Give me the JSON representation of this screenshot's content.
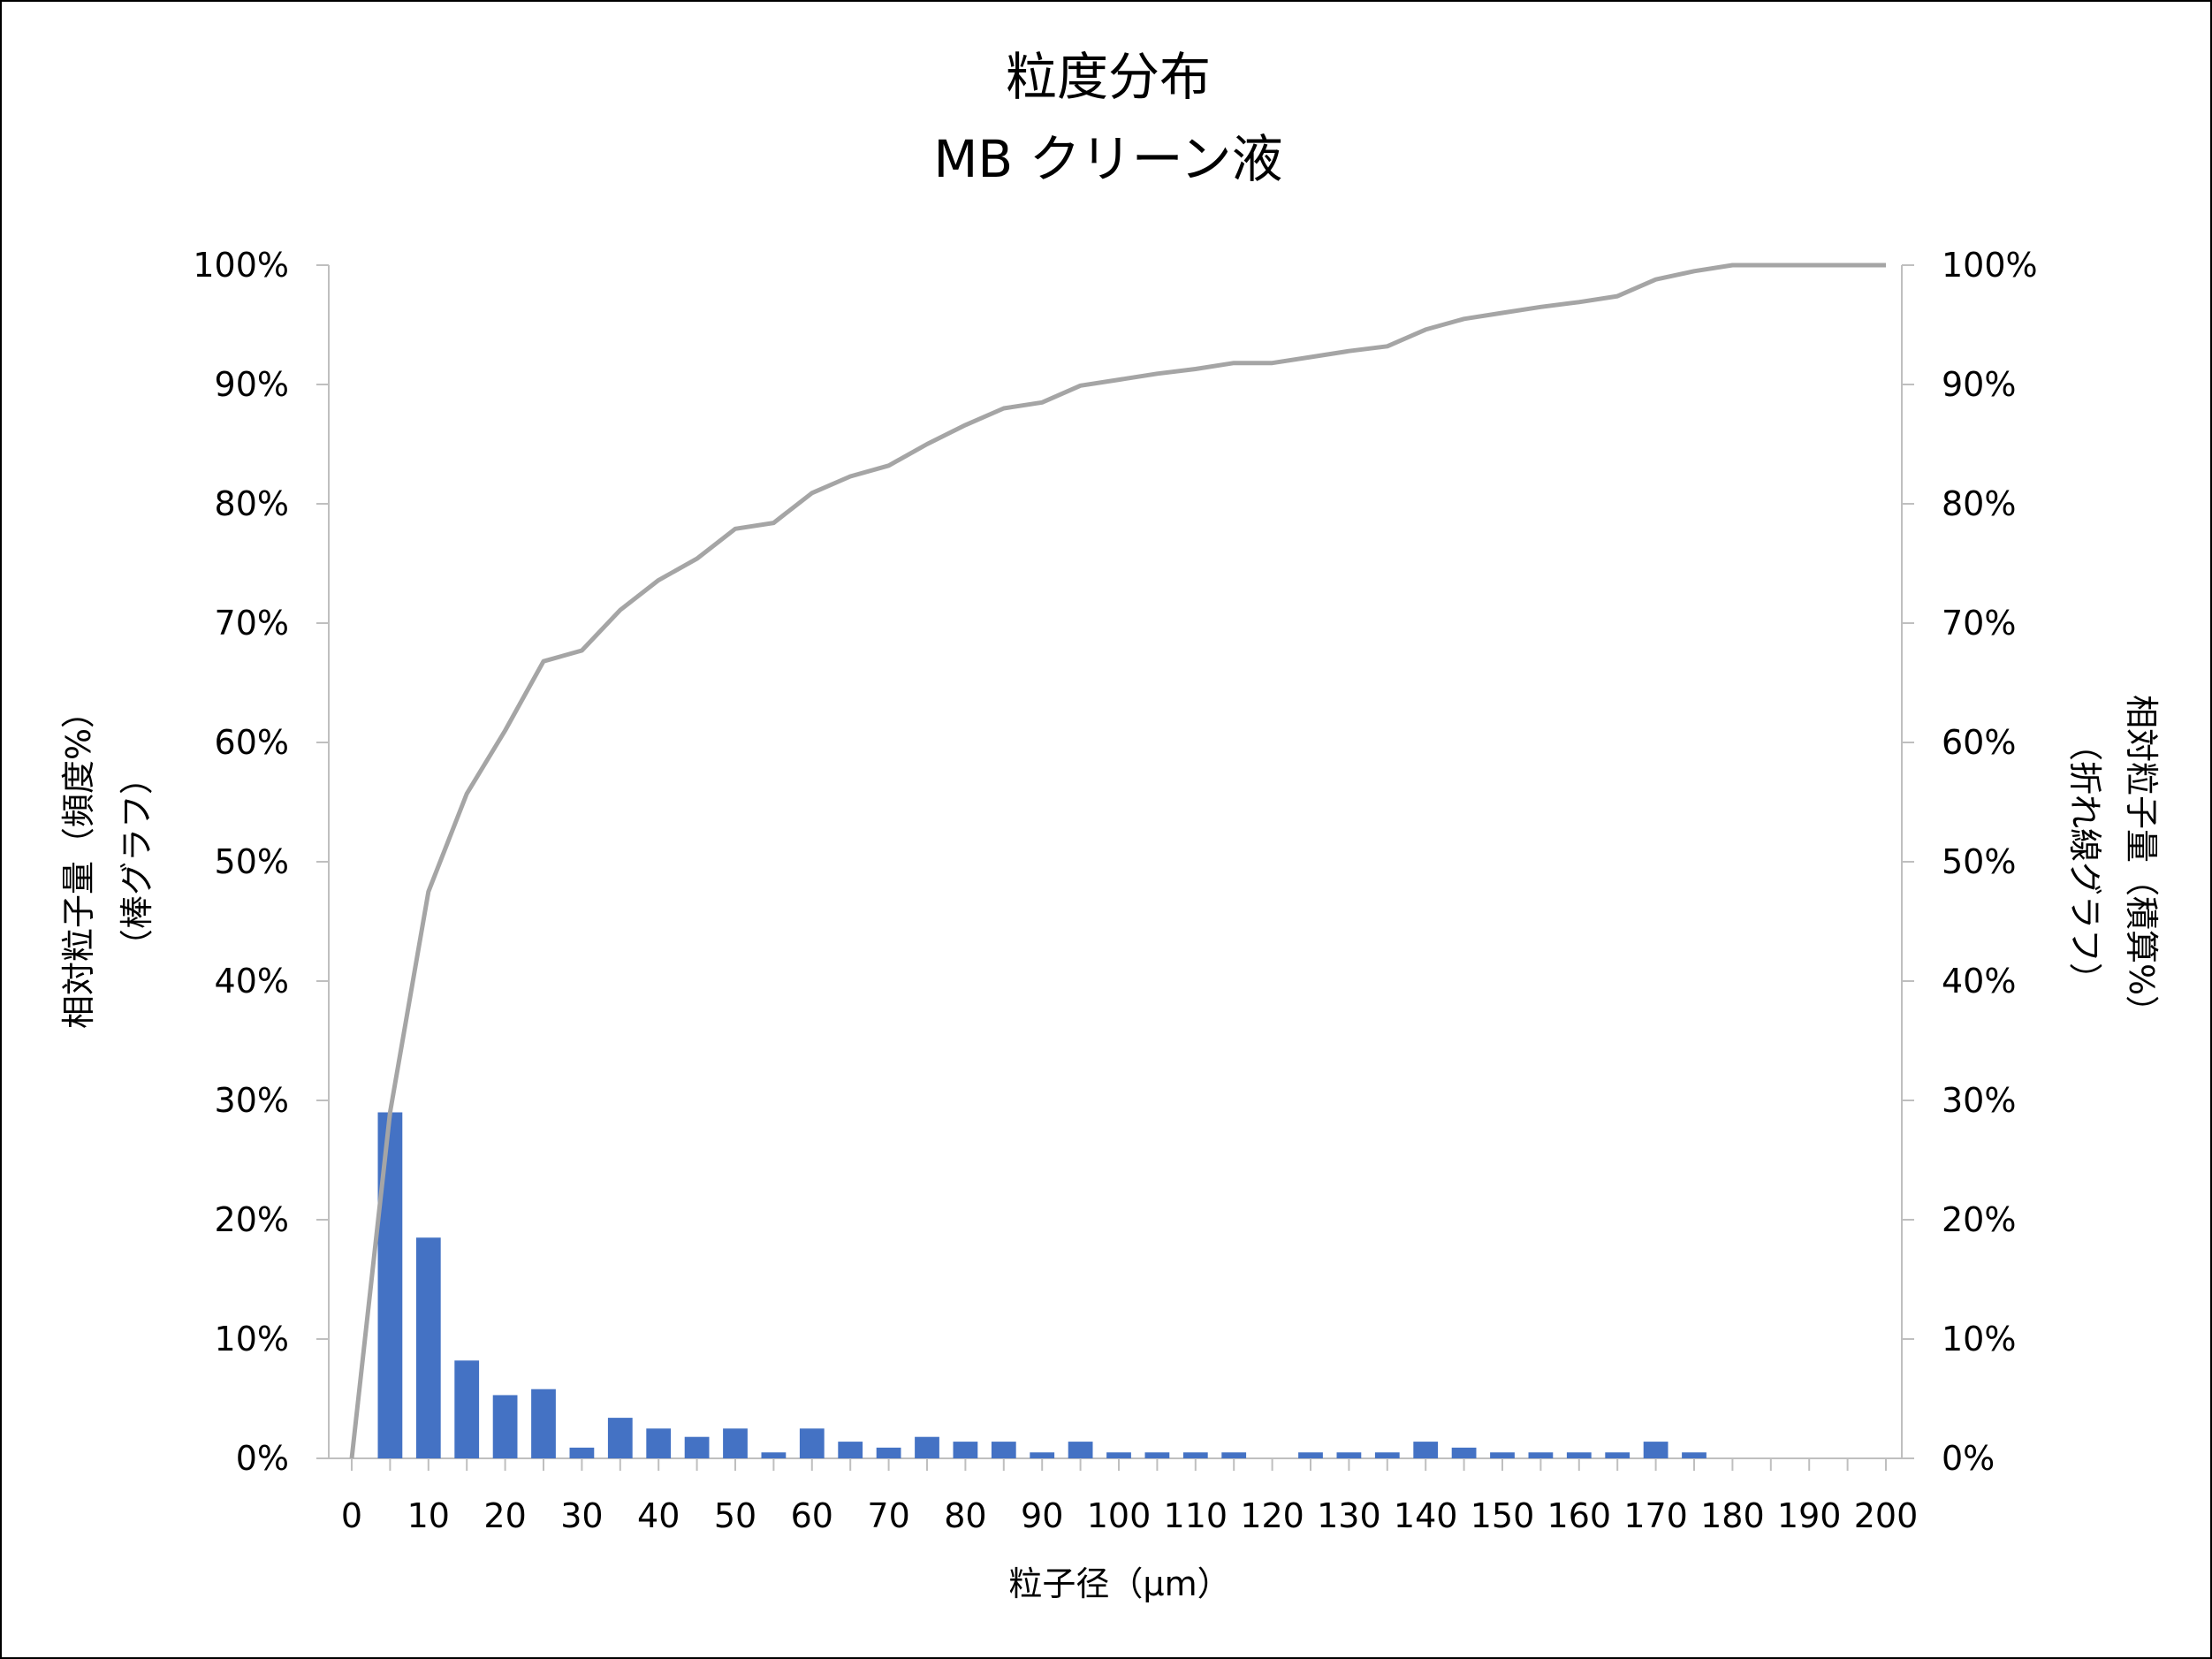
{
  "chart_data": {
    "type": "bar",
    "title": "粒度分布",
    "subtitle": "MB クリーン液",
    "xlabel": "粒子径（µm）",
    "ylabel_left": [
      "相対粒子量（頻度%）",
      "（棒グラフ）"
    ],
    "ylabel_right": [
      "相対粒子量（積算%）",
      "（折れ線グラフ）"
    ],
    "x_ticks": [
      "0",
      "10",
      "20",
      "30",
      "40",
      "50",
      "60",
      "70",
      "80",
      "90",
      "100",
      "110",
      "120",
      "130",
      "140",
      "150",
      "160",
      "170",
      "180",
      "190",
      "200"
    ],
    "y_ticks_left": [
      "0%",
      "10%",
      "20%",
      "30%",
      "40%",
      "50%",
      "60%",
      "70%",
      "80%",
      "90%",
      "100%"
    ],
    "y_ticks_right": [
      "0%",
      "10%",
      "20%",
      "30%",
      "40%",
      "50%",
      "60%",
      "70%",
      "80%",
      "90%",
      "100%"
    ],
    "xlim": [
      0,
      200
    ],
    "ylim_left": [
      0,
      100
    ],
    "ylim_right": [
      0,
      100
    ],
    "grid": false,
    "bar_series": {
      "color": "#4472C4",
      "x": [
        5,
        10,
        15,
        20,
        25,
        30,
        35,
        40,
        45,
        50,
        55,
        60,
        65,
        70,
        75,
        80,
        85,
        90,
        95,
        100,
        105,
        110,
        115,
        120,
        125,
        130,
        135,
        140,
        145,
        150,
        155,
        160,
        165,
        170,
        175,
        180,
        185,
        190,
        195,
        200
      ],
      "values": [
        29,
        18.5,
        8.2,
        5.3,
        5.8,
        0.9,
        3.4,
        2.5,
        1.8,
        2.5,
        0.5,
        2.5,
        1.4,
        0.9,
        1.8,
        1.4,
        1.4,
        0.5,
        1.4,
        0.5,
        0.5,
        0.5,
        0.5,
        0,
        0.5,
        0.5,
        0.5,
        1.4,
        0.9,
        0.5,
        0.5,
        0.5,
        0.5,
        1.4,
        0.5,
        0,
        0,
        0,
        0,
        0
      ]
    },
    "line_series": {
      "color": "#A5A5A5",
      "x": [
        0,
        5,
        10,
        15,
        20,
        25,
        30,
        35,
        40,
        45,
        50,
        55,
        60,
        65,
        70,
        75,
        80,
        85,
        90,
        95,
        100,
        105,
        110,
        115,
        120,
        125,
        130,
        135,
        140,
        145,
        150,
        155,
        160,
        165,
        170,
        175,
        180,
        185,
        190,
        195,
        200
      ],
      "values": [
        0,
        29,
        47.5,
        55.7,
        61,
        66.8,
        67.7,
        71.1,
        73.6,
        75.4,
        77.9,
        78.4,
        80.9,
        82.3,
        83.2,
        85,
        86.6,
        88,
        88.5,
        89.9,
        90.4,
        90.9,
        91.3,
        91.8,
        91.8,
        92.3,
        92.8,
        93.2,
        94.6,
        95.5,
        96,
        96.5,
        96.9,
        97.4,
        98.8,
        99.5,
        100,
        100,
        100,
        100,
        100
      ]
    }
  }
}
